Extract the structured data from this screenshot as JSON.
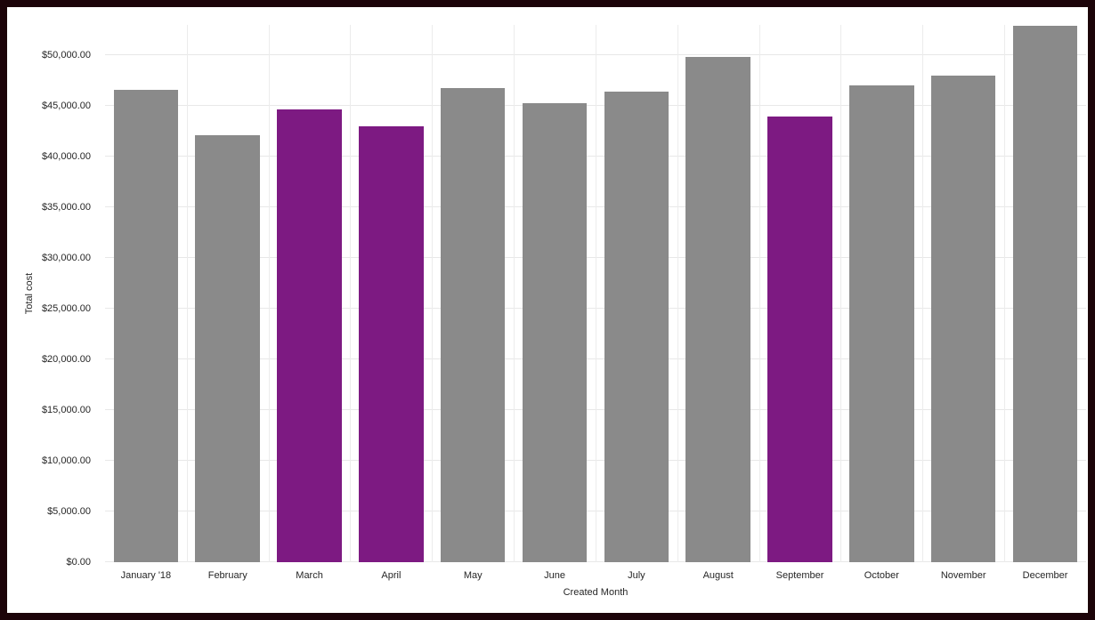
{
  "frame": {
    "border_color": "#1c0409",
    "background_color": "#ffffff"
  },
  "chart_data": {
    "type": "bar",
    "title": "",
    "xlabel": "Created Month",
    "ylabel": "Total cost",
    "categories": [
      "January '18",
      "February",
      "March",
      "April",
      "May",
      "June",
      "July",
      "August",
      "September",
      "October",
      "November",
      "December"
    ],
    "values": [
      46600,
      42100,
      44700,
      43000,
      46800,
      45300,
      46400,
      49800,
      44000,
      47000,
      48000,
      52900
    ],
    "bar_colors": [
      "#8a8a8a",
      "#8a8a8a",
      "#7d1a82",
      "#7d1a82",
      "#8a8a8a",
      "#8a8a8a",
      "#8a8a8a",
      "#8a8a8a",
      "#7d1a82",
      "#8a8a8a",
      "#8a8a8a",
      "#8a8a8a"
    ],
    "default_bar_color": "#8a8a8a",
    "highlight_bar_color": "#7d1a82",
    "ylim": [
      0,
      53000
    ],
    "ytick_step": 5000,
    "ytick_labels": [
      "$0.00",
      "$5,000.00",
      "$10,000.00",
      "$15,000.00",
      "$20,000.00",
      "$25,000.00",
      "$30,000.00",
      "$35,000.00",
      "$40,000.00",
      "$45,000.00",
      "$50,000.00"
    ],
    "grid": true,
    "legend": "none"
  }
}
